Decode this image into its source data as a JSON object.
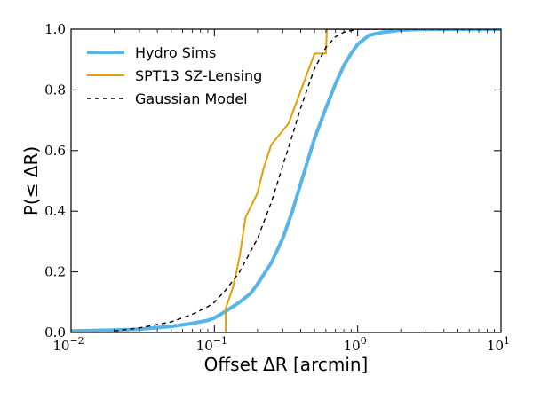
{
  "chart_data": {
    "type": "line",
    "xlabel": "Offset ΔR [arcmin]",
    "ylabel": "P(≤ ΔR)",
    "xscale": "log",
    "xlim": [
      0.01,
      10
    ],
    "ylim": [
      0,
      1
    ],
    "grid": false,
    "legend_position": "top-left",
    "x_ticks": [
      {
        "value": 0.01,
        "base": "10",
        "exp": "−2"
      },
      {
        "value": 0.1,
        "base": "10",
        "exp": "−1"
      },
      {
        "value": 1,
        "base": "10",
        "exp": "0"
      },
      {
        "value": 10,
        "base": "10",
        "exp": "1"
      }
    ],
    "y_ticks": [
      {
        "value": 0.0,
        "label": "0.0"
      },
      {
        "value": 0.2,
        "label": "0.2"
      },
      {
        "value": 0.4,
        "label": "0.4"
      },
      {
        "value": 0.6,
        "label": "0.6"
      },
      {
        "value": 0.8,
        "label": "0.8"
      },
      {
        "value": 1.0,
        "label": "1.0"
      }
    ],
    "series": [
      {
        "name": "Hydro Sims",
        "color": "#56b4e9",
        "style": "solid-thick",
        "x": [
          0.01,
          0.02,
          0.03,
          0.05,
          0.07,
          0.09,
          0.1,
          0.12,
          0.15,
          0.18,
          0.2,
          0.25,
          0.3,
          0.35,
          0.4,
          0.45,
          0.5,
          0.6,
          0.7,
          0.8,
          0.9,
          1.0,
          1.2,
          1.5,
          2.0,
          3.0,
          10.0
        ],
        "y": [
          0.005,
          0.008,
          0.011,
          0.02,
          0.03,
          0.04,
          0.048,
          0.07,
          0.1,
          0.13,
          0.16,
          0.23,
          0.31,
          0.4,
          0.49,
          0.57,
          0.64,
          0.74,
          0.82,
          0.88,
          0.92,
          0.95,
          0.98,
          0.99,
          0.997,
          1.0,
          1.0
        ]
      },
      {
        "name": "SPT13 SZ-Lensing",
        "color": "#e69f00",
        "style": "solid",
        "x": [
          0.12,
          0.12,
          0.135,
          0.15,
          0.165,
          0.2,
          0.22,
          0.25,
          0.33,
          0.5,
          0.6,
          0.61,
          10.0
        ],
        "y": [
          0.0,
          0.08,
          0.15,
          0.25,
          0.38,
          0.46,
          0.54,
          0.62,
          0.69,
          0.92,
          0.92,
          1.0,
          1.0
        ]
      },
      {
        "name": "Gaussian Model",
        "color": "#000000",
        "style": "dashed",
        "x": [
          0.02,
          0.03,
          0.05,
          0.07,
          0.09,
          0.1,
          0.12,
          0.15,
          0.18,
          0.2,
          0.25,
          0.3,
          0.35,
          0.4,
          0.45,
          0.5,
          0.6,
          0.7,
          0.8,
          1.0,
          10.0
        ],
        "y": [
          0.005,
          0.015,
          0.035,
          0.06,
          0.085,
          0.1,
          0.14,
          0.2,
          0.27,
          0.31,
          0.43,
          0.55,
          0.65,
          0.74,
          0.81,
          0.87,
          0.94,
          0.975,
          0.99,
          1.0,
          1.0
        ]
      }
    ]
  }
}
